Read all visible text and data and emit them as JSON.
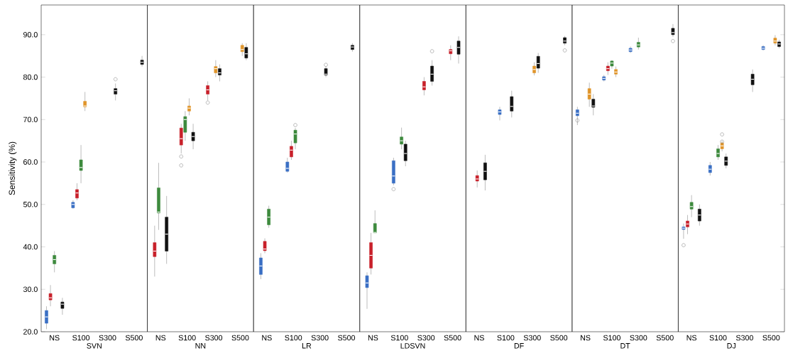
{
  "chart_data": [
    {
      "type": "box",
      "xlabel": "SVN",
      "ylabel": "Sensitivity (%)",
      "categories": [
        "NS",
        "S100",
        "S300",
        "S500"
      ],
      "ylim": [
        20,
        97
      ],
      "yticks": [
        {
          "value": 20,
          "label": "20.0"
        },
        {
          "value": 30,
          "label": "30.0"
        },
        {
          "value": 40,
          "label": "40.0"
        },
        {
          "value": 50,
          "label": "50.0"
        },
        {
          "value": 60,
          "label": "60.0"
        },
        {
          "value": 70,
          "label": "70.0"
        },
        {
          "value": 80,
          "label": "80.0"
        },
        {
          "value": 90,
          "label": "90.0"
        }
      ],
      "series": [
        {
          "color": "#3a6fc4",
          "boxes": [
            {
              "low": 20.6,
              "q1": 22,
              "median": 23.5,
              "q3": 25,
              "high": 26
            },
            {
              "low": 49,
              "q1": 49.2,
              "median": 50,
              "q3": 50.5,
              "high": 51
            },
            null,
            null
          ]
        },
        {
          "color": "#c8202a",
          "boxes": [
            {
              "low": 26,
              "q1": 27.5,
              "median": 28,
              "q3": 29,
              "high": 31
            },
            {
              "low": 51,
              "q1": 51.5,
              "median": 52.7,
              "q3": 53.5,
              "high": 55
            },
            null,
            null
          ]
        },
        {
          "color": "#3d8a3d",
          "boxes": [
            {
              "low": 34,
              "q1": 36,
              "median": 37,
              "q3": 38,
              "high": 39
            },
            {
              "low": 55,
              "q1": 58,
              "median": 58.7,
              "q3": 60.5,
              "high": 64
            },
            null,
            null
          ]
        },
        {
          "color": "#e0952a",
          "boxes": [
            null,
            {
              "low": 72,
              "q1": 73,
              "median": 73.2,
              "q3": 74.3,
              "high": 76.5
            },
            null,
            null
          ]
        },
        {
          "color": "#111111",
          "boxes": [
            {
              "low": 24,
              "q1": 25.5,
              "median": 26.5,
              "q3": 27,
              "high": 28
            },
            null,
            {
              "low": 74.5,
              "q1": 76,
              "median": 76.8,
              "q3": 77.3,
              "high": 78.5,
              "outliers": [
                79.5
              ]
            },
            {
              "low": 82.5,
              "q1": 83,
              "median": 83.5,
              "q3": 84,
              "high": 85
            }
          ]
        }
      ]
    },
    {
      "type": "box",
      "xlabel": "NN",
      "categories": [
        "NS",
        "S100",
        "S300",
        "S500"
      ],
      "ylim": [
        20,
        97
      ],
      "tick_labels": "x",
      "series": [
        {
          "color": "#c8202a",
          "boxes": [
            {
              "low": 33,
              "q1": 37.7,
              "median": 39,
              "q3": 41,
              "high": 45
            },
            {
              "low": 62,
              "q1": 64,
              "median": 65.5,
              "q3": 68,
              "high": 69,
              "outliers": [
                61.3,
                59.2
              ]
            },
            {
              "low": 74.5,
              "q1": 76,
              "median": 77,
              "q3": 78,
              "high": 79,
              "outliers": [
                74
              ]
            },
            null
          ]
        },
        {
          "color": "#3d8a3d",
          "boxes": [
            {
              "low": 44,
              "q1": 48,
              "median": 48.2,
              "q3": 53.9,
              "high": 59.8
            },
            {
              "low": 65,
              "q1": 67,
              "median": 70,
              "q3": 70.7,
              "high": 72
            },
            null,
            null
          ]
        },
        {
          "color": "#e0952a",
          "boxes": [
            null,
            {
              "low": 71,
              "q1": 72,
              "median": 72.7,
              "q3": 73.2,
              "high": 75
            },
            {
              "low": 80,
              "q1": 81,
              "median": 82,
              "q3": 82.5,
              "high": 84
            },
            {
              "low": 85,
              "q1": 86,
              "median": 86.5,
              "q3": 87.5,
              "high": 88
            }
          ]
        },
        {
          "color": "#111111",
          "boxes": [
            {
              "low": 36,
              "q1": 39,
              "median": 43,
              "q3": 47,
              "high": 52
            },
            {
              "low": 63,
              "q1": 65,
              "median": 66,
              "q3": 67,
              "high": 69
            },
            {
              "low": 79,
              "q1": 80.5,
              "median": 81,
              "q3": 82,
              "high": 83
            },
            {
              "low": 84,
              "q1": 84.5,
              "median": 85.5,
              "q3": 87,
              "high": 88
            }
          ]
        }
      ]
    },
    {
      "type": "box",
      "xlabel": "LR",
      "categories": [
        "NS",
        "S100",
        "S300",
        "S500"
      ],
      "ylim": [
        20,
        97
      ],
      "tick_labels": "x",
      "series": [
        {
          "color": "#3a6fc4",
          "boxes": [
            {
              "low": 32.4,
              "q1": 33.5,
              "median": 35.5,
              "q3": 37.4,
              "high": 38.5
            },
            {
              "low": 57.5,
              "q1": 57.8,
              "median": 58.5,
              "q3": 60,
              "high": 61
            },
            null,
            null
          ]
        },
        {
          "color": "#c8202a",
          "boxes": [
            {
              "low": 38.5,
              "q1": 39.1,
              "median": 39.5,
              "q3": 41.3,
              "high": 42
            },
            {
              "low": 60.5,
              "q1": 61.2,
              "median": 62.8,
              "q3": 63.7,
              "high": 65
            },
            null,
            null
          ]
        },
        {
          "color": "#3d8a3d",
          "boxes": [
            {
              "low": 44.5,
              "q1": 45.2,
              "median": 47,
              "q3": 48.9,
              "high": 49.7
            },
            {
              "low": 63,
              "q1": 64.5,
              "median": 66.6,
              "q3": 67.5,
              "high": 68,
              "outliers": [
                68.7
              ]
            },
            null,
            null
          ]
        },
        {
          "color": "#111111",
          "boxes": [
            null,
            null,
            {
              "low": 80,
              "q1": 80.5,
              "median": 80.7,
              "q3": 82,
              "high": 82.5,
              "outliers": [
                82.9
              ]
            },
            {
              "low": 86,
              "q1": 86.5,
              "median": 87.1,
              "q3": 87.5,
              "high": 88
            }
          ]
        }
      ]
    },
    {
      "type": "box",
      "xlabel": "LDSVN",
      "categories": [
        "NS",
        "S100",
        "S300",
        "S500"
      ],
      "ylim": [
        20,
        97
      ],
      "tick_labels": "x",
      "series": [
        {
          "color": "#3a6fc4",
          "boxes": [
            {
              "low": 25.4,
              "q1": 30.4,
              "median": 31.5,
              "q3": 33.2,
              "high": 34
            },
            {
              "low": 54.5,
              "q1": 55,
              "median": 56.7,
              "q3": 60.3,
              "high": 61,
              "outliers": [
                53.6
              ]
            },
            null,
            null
          ]
        },
        {
          "color": "#c8202a",
          "boxes": [
            {
              "low": 33.5,
              "q1": 35,
              "median": 38,
              "q3": 41,
              "high": 43.3
            },
            null,
            {
              "low": 75.7,
              "q1": 77,
              "median": 77.7,
              "q3": 79,
              "high": 80
            },
            {
              "low": 84,
              "q1": 85.5,
              "median": 86.2,
              "q3": 86.5,
              "high": 87.5
            }
          ]
        },
        {
          "color": "#3d8a3d",
          "boxes": [
            {
              "low": 43.3,
              "q1": 43.3,
              "median": 43.4,
              "q3": 45.5,
              "high": 48.6
            },
            {
              "low": 63,
              "q1": 64.2,
              "median": 65,
              "q3": 65.9,
              "high": 68.1
            },
            null,
            null
          ]
        },
        {
          "color": "#111111",
          "boxes": [
            null,
            {
              "low": 59,
              "q1": 60.3,
              "median": 62,
              "q3": 64.2,
              "high": 65
            },
            {
              "low": 78,
              "q1": 79,
              "median": 80.7,
              "q3": 82.6,
              "high": 84,
              "outliers": [
                86.1
              ]
            },
            {
              "low": 83.2,
              "q1": 85.4,
              "median": 87,
              "q3": 88.5,
              "high": 89.6
            }
          ]
        }
      ]
    },
    {
      "type": "box",
      "xlabel": "DF",
      "categories": [
        "NS",
        "S100",
        "S300",
        "S500"
      ],
      "ylim": [
        20,
        97
      ],
      "tick_labels": "x",
      "series": [
        {
          "color": "#3a6fc4",
          "boxes": [
            null,
            {
              "low": 69.8,
              "q1": 71.2,
              "median": 71.8,
              "q3": 72.3,
              "high": 73
            },
            null,
            null
          ]
        },
        {
          "color": "#c8202a",
          "boxes": [
            {
              "low": 54,
              "q1": 55.5,
              "median": 56,
              "q3": 56.8,
              "high": 58
            },
            null,
            null,
            null
          ]
        },
        {
          "color": "#e0952a",
          "boxes": [
            null,
            null,
            {
              "low": 80.4,
              "q1": 81,
              "median": 81.8,
              "q3": 82.6,
              "high": 83.5
            },
            null
          ]
        },
        {
          "color": "#111111",
          "boxes": [
            {
              "low": 53.3,
              "q1": 55.8,
              "median": 57.8,
              "q3": 59.8,
              "high": 61.7
            },
            {
              "low": 70.5,
              "q1": 72,
              "median": 73.1,
              "q3": 75.4,
              "high": 76.8
            },
            {
              "low": 81,
              "q1": 82.1,
              "median": 83.2,
              "q3": 84.9,
              "high": 85.7
            },
            {
              "low": 87.5,
              "q1": 88,
              "median": 88.5,
              "q3": 89.3,
              "high": 89.7,
              "outliers": [
                86.3
              ]
            }
          ]
        }
      ]
    },
    {
      "type": "box",
      "xlabel": "DT",
      "categories": [
        "NS",
        "S100",
        "S300",
        "S500"
      ],
      "ylim": [
        20,
        97
      ],
      "tick_labels": "x",
      "series": [
        {
          "color": "#3a6fc4",
          "boxes": [
            {
              "low": 68.7,
              "q1": 70.9,
              "median": 71.5,
              "q3": 72.3,
              "high": 73,
              "outliers": [
                69.8
              ]
            },
            {
              "low": 79,
              "q1": 79.3,
              "median": 79.7,
              "q3": 80.1,
              "high": 80.5
            },
            {
              "low": 85.7,
              "q1": 86,
              "median": 86.4,
              "q3": 86.8,
              "high": 87.2
            },
            null
          ]
        },
        {
          "color": "#c8202a",
          "boxes": [
            null,
            {
              "low": 80.5,
              "q1": 81.5,
              "median": 82,
              "q3": 82.6,
              "high": 83.5
            },
            null,
            null
          ]
        },
        {
          "color": "#3d8a3d",
          "boxes": [
            null,
            {
              "low": 82,
              "q1": 82.6,
              "median": 83.3,
              "q3": 83.8,
              "high": 84
            },
            {
              "low": 86.5,
              "q1": 87.1,
              "median": 87.6,
              "q3": 88.2,
              "high": 89.3
            },
            null
          ]
        },
        {
          "color": "#e0952a",
          "boxes": [
            {
              "low": 73,
              "q1": 74.8,
              "median": 76,
              "q3": 77.3,
              "high": 78.7
            },
            {
              "low": 80,
              "q1": 80.7,
              "median": 81.2,
              "q3": 81.8,
              "high": 82.5
            },
            null,
            null
          ]
        },
        {
          "color": "#111111",
          "boxes": [
            {
              "low": 71,
              "q1": 72.9,
              "median": 73.2,
              "q3": 74.8,
              "high": 76
            },
            null,
            null,
            {
              "low": 89.5,
              "q1": 90,
              "median": 90.5,
              "q3": 91.5,
              "high": 92.5,
              "outliers": [
                88.5
              ]
            }
          ]
        }
      ]
    },
    {
      "type": "box",
      "xlabel": "DJ",
      "categories": [
        "NS",
        "S100",
        "S300",
        "S500"
      ],
      "ylim": [
        20,
        97
      ],
      "tick_labels": "x",
      "yticks": [
        {
          "value": 20,
          "label": null
        },
        {
          "value": 30,
          "label": null
        },
        {
          "value": 40,
          "label": null
        },
        {
          "value": 50,
          "label": null
        },
        {
          "value": 60,
          "label": null
        },
        {
          "value": 70,
          "label": null
        },
        {
          "value": 80,
          "label": null
        },
        {
          "value": 90,
          "label": null
        }
      ],
      "series": [
        {
          "color": "#3a6fc4",
          "boxes": [
            {
              "low": 41.9,
              "q1": 44.1,
              "median": 44.4,
              "q3": 44.7,
              "high": 45.5,
              "outliers": [
                40.4
              ]
            },
            {
              "low": 56.8,
              "q1": 57.5,
              "median": 58.3,
              "q3": 59.2,
              "high": 60
            },
            null,
            {
              "low": 86.3,
              "q1": 86.5,
              "median": 86.8,
              "q3": 87.2,
              "high": 87.5
            }
          ]
        },
        {
          "color": "#c8202a",
          "boxes": [
            {
              "low": 43,
              "q1": 44.7,
              "median": 45.4,
              "q3": 46.1,
              "high": 47.5
            },
            null,
            null,
            null
          ]
        },
        {
          "color": "#3d8a3d",
          "boxes": [
            {
              "low": 47,
              "q1": 48.9,
              "median": 49.5,
              "q3": 50.5,
              "high": 52.2
            },
            {
              "low": 60.5,
              "q1": 61.2,
              "median": 62,
              "q3": 63.1,
              "high": 64
            },
            null,
            null
          ]
        },
        {
          "color": "#e0952a",
          "boxes": [
            null,
            {
              "low": 62.5,
              "q1": 63.1,
              "median": 63.8,
              "q3": 64.5,
              "high": 65,
              "outliers": [
                66.5,
                64.8
              ]
            },
            null,
            {
              "low": 87.5,
              "q1": 88,
              "median": 88.5,
              "q3": 89.2,
              "high": 89.9
            }
          ]
        },
        {
          "color": "#111111",
          "boxes": [
            {
              "low": 45,
              "q1": 46.1,
              "median": 47.5,
              "q3": 48.9,
              "high": 50
            },
            {
              "low": 58.5,
              "q1": 59.2,
              "median": 60.2,
              "q3": 61.2,
              "high": 62
            },
            {
              "low": 76.5,
              "q1": 78.2,
              "median": 79.5,
              "q3": 80.7,
              "high": 81.8
            },
            {
              "low": 86.8,
              "q1": 87.2,
              "median": 87.8,
              "q3": 88.3,
              "high": 88.8
            }
          ]
        }
      ]
    }
  ]
}
